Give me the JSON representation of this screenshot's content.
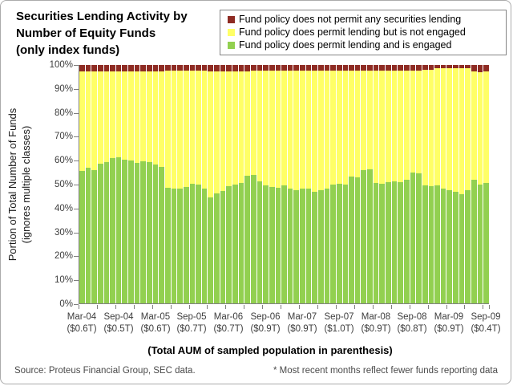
{
  "title_lines": [
    "Securities Lending Activity by",
    "Number of Equity Funds",
    "(only index funds)"
  ],
  "legend": {
    "items": [
      {
        "label": "Fund policy does not permit any securities lending",
        "color": "#8E2B23"
      },
      {
        "label": "Fund policy does permit lending but is not engaged",
        "color": "#FFFF66"
      },
      {
        "label": "Fund policy does permit lending and is engaged",
        "color": "#92D050"
      }
    ]
  },
  "y_axis": {
    "title_lines": [
      "Portion of Total Number of Funds",
      "(ignores multiple classes)"
    ],
    "tick_labels": [
      "100%",
      "90%",
      "80%",
      "70%",
      "60%",
      "50%",
      "40%",
      "30%",
      "20%",
      "10%",
      "0%"
    ]
  },
  "x_axis": {
    "title": "(Total AUM of sampled population in parenthesis)",
    "groups": [
      {
        "month": "Mar-04",
        "aum": "($0.6T)"
      },
      {
        "month": "Sep-04",
        "aum": "($0.5T)"
      },
      {
        "month": "Mar-05",
        "aum": "($0.6T)"
      },
      {
        "month": "Sep-05",
        "aum": "($0.7T)"
      },
      {
        "month": "Mar-06",
        "aum": "($0.7T)"
      },
      {
        "month": "Sep-06",
        "aum": "($0.9T)"
      },
      {
        "month": "Mar-07",
        "aum": "($0.9T)"
      },
      {
        "month": "Sep-07",
        "aum": "($1.0T)"
      },
      {
        "month": "Mar-08",
        "aum": "($0.9T)"
      },
      {
        "month": "Sep-08",
        "aum": "($0.8T)"
      },
      {
        "month": "Mar-09",
        "aum": "($0.9T)"
      },
      {
        "month": "Sep-09",
        "aum": "($0.4T)"
      }
    ]
  },
  "footer": {
    "source": "Source: Proteus Financial Group, SEC data.",
    "note": "* Most recent months reflect fewer funds reporting data"
  },
  "chart_data": {
    "type": "bar",
    "stacked": true,
    "stacked_to_100_percent": true,
    "title": "Securities Lending Activity by Number of Equity Funds (only index funds)",
    "xlabel": "(Total AUM of sampled population in parenthesis)",
    "ylabel": "Portion of Total Number of Funds (ignores multiple classes)",
    "ylim": [
      0,
      100
    ],
    "grid": false,
    "legend_position": "top-right",
    "tick_interval_months": 3,
    "label_interval_months": 6,
    "x": [
      "Mar-04",
      "Apr-04",
      "May-04",
      "Jun-04",
      "Jul-04",
      "Aug-04",
      "Sep-04",
      "Oct-04",
      "Nov-04",
      "Dec-04",
      "Jan-05",
      "Feb-05",
      "Mar-05",
      "Apr-05",
      "May-05",
      "Jun-05",
      "Jul-05",
      "Aug-05",
      "Sep-05",
      "Oct-05",
      "Nov-05",
      "Dec-05",
      "Jan-06",
      "Feb-06",
      "Mar-06",
      "Apr-06",
      "May-06",
      "Jun-06",
      "Jul-06",
      "Aug-06",
      "Sep-06",
      "Oct-06",
      "Nov-06",
      "Dec-06",
      "Jan-07",
      "Feb-07",
      "Mar-07",
      "Apr-07",
      "May-07",
      "Jun-07",
      "Jul-07",
      "Aug-07",
      "Sep-07",
      "Oct-07",
      "Nov-07",
      "Dec-07",
      "Jan-08",
      "Feb-08",
      "Mar-08",
      "Apr-08",
      "May-08",
      "Jun-08",
      "Jul-08",
      "Aug-08",
      "Sep-08",
      "Oct-08",
      "Nov-08",
      "Dec-08",
      "Jan-09",
      "Feb-09",
      "Mar-09",
      "Apr-09",
      "May-09",
      "Jun-09",
      "Jul-09",
      "Aug-09",
      "Sep-09"
    ],
    "series": [
      {
        "name": "Fund policy does not permit any securities lending",
        "color": "#8E2B23",
        "stack_order": "top",
        "values": [
          2.8,
          2.8,
          2.8,
          2.8,
          2.8,
          2.8,
          2.8,
          2.8,
          2.8,
          2.8,
          2.8,
          2.8,
          2.8,
          2.8,
          2.5,
          2.5,
          2.5,
          2.5,
          2.5,
          2.5,
          2.5,
          2.8,
          2.8,
          2.8,
          2.8,
          2.8,
          2.8,
          2.8,
          2.5,
          2.5,
          2.5,
          2.5,
          2.5,
          2.5,
          2.5,
          2.5,
          2.5,
          2.5,
          2.5,
          2.5,
          2.5,
          2.5,
          2.5,
          2.5,
          2.5,
          2.5,
          2.5,
          2.5,
          2.5,
          2.5,
          2.5,
          2.5,
          2.2,
          2.2,
          2.2,
          2.2,
          2.0,
          2.0,
          1.2,
          1.2,
          1.2,
          1.2,
          1.2,
          1.5,
          2.8,
          3.0,
          2.8
        ]
      },
      {
        "name": "Fund policy does permit lending but is not engaged",
        "color": "#FFFF66",
        "stack_order": "middle",
        "values": [
          41.8,
          40.3,
          41.2,
          38.6,
          37.8,
          36.4,
          35.8,
          36.9,
          37.1,
          38.4,
          37.5,
          37.9,
          38.8,
          40.0,
          48.9,
          49.2,
          49.5,
          48.6,
          47.3,
          47.8,
          49.3,
          52.6,
          50.9,
          50.0,
          48.1,
          47.3,
          46.8,
          43.6,
          43.7,
          46.2,
          48.1,
          48.7,
          48.9,
          48.1,
          49.5,
          50.1,
          49.5,
          49.2,
          50.6,
          50.1,
          49.2,
          47.8,
          47.3,
          47.8,
          44.3,
          44.5,
          41.7,
          41.4,
          47.1,
          47.3,
          46.7,
          46.2,
          47.0,
          45.9,
          42.9,
          43.1,
          48.6,
          48.9,
          49.4,
          50.6,
          51.4,
          51.9,
          53.1,
          51.1,
          45.3,
          47.3,
          46.7
        ]
      },
      {
        "name": "Fund policy does permit lending and is engaged",
        "color": "#92D050",
        "stack_order": "bottom",
        "values": [
          55.4,
          56.9,
          56.0,
          58.6,
          59.4,
          60.8,
          61.4,
          60.3,
          60.1,
          58.8,
          59.7,
          59.3,
          58.4,
          57.2,
          48.6,
          48.3,
          48.0,
          48.9,
          50.2,
          49.7,
          48.2,
          44.6,
          46.3,
          47.2,
          49.1,
          49.9,
          50.4,
          53.6,
          53.8,
          51.3,
          49.4,
          48.8,
          48.6,
          49.4,
          48.0,
          47.4,
          48.0,
          48.3,
          46.9,
          47.4,
          48.3,
          49.7,
          50.2,
          49.7,
          53.2,
          53.0,
          55.8,
          56.1,
          50.4,
          50.2,
          50.8,
          51.3,
          50.8,
          51.9,
          54.9,
          54.7,
          49.4,
          49.1,
          49.4,
          48.2,
          47.4,
          46.9,
          45.7,
          47.4,
          51.9,
          49.7,
          50.5
        ]
      }
    ]
  }
}
